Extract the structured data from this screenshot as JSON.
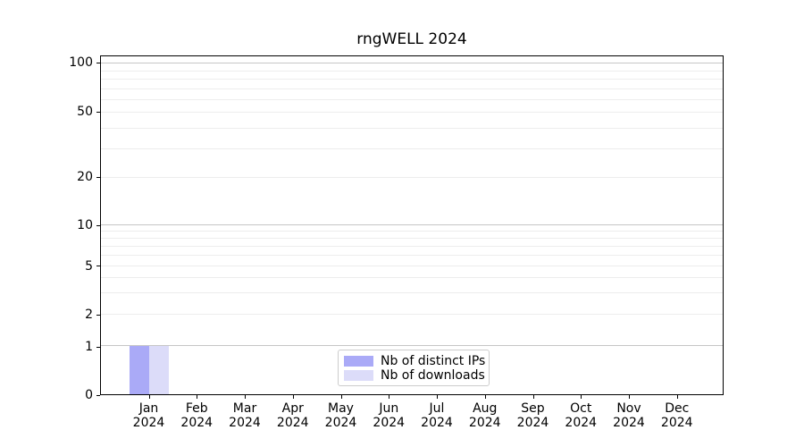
{
  "chart_data": {
    "type": "bar",
    "title": "rngWELL 2024",
    "x": {
      "months": [
        "Jan",
        "Feb",
        "Mar",
        "Apr",
        "May",
        "Jun",
        "Jul",
        "Aug",
        "Sep",
        "Oct",
        "Nov",
        "Dec"
      ],
      "year": "2024"
    },
    "series": [
      {
        "name": "Nb of distinct IPs",
        "color": "#aaaaf7",
        "values": [
          1,
          0,
          0,
          0,
          0,
          0,
          0,
          0,
          0,
          0,
          0,
          0
        ]
      },
      {
        "name": "Nb of downloads",
        "color": "#dcdcf9",
        "values": [
          1,
          0,
          0,
          0,
          0,
          0,
          0,
          0,
          0,
          0,
          0,
          0
        ]
      }
    ],
    "y_axis": {
      "ticks": [
        0,
        1,
        2,
        5,
        10,
        20,
        50,
        100
      ],
      "scale": "symlog",
      "min": 0,
      "max_tick": 100
    },
    "grid": {
      "horizontal_major": true,
      "horizontal_minor": true,
      "vertical": false
    },
    "legend": {
      "position": "lower center"
    }
  },
  "colors": {
    "grid_major": "#c6c6c6",
    "grid_minor": "#ededed",
    "spine": "#000000",
    "legend_border": "#cccccc",
    "text": "#000000"
  }
}
